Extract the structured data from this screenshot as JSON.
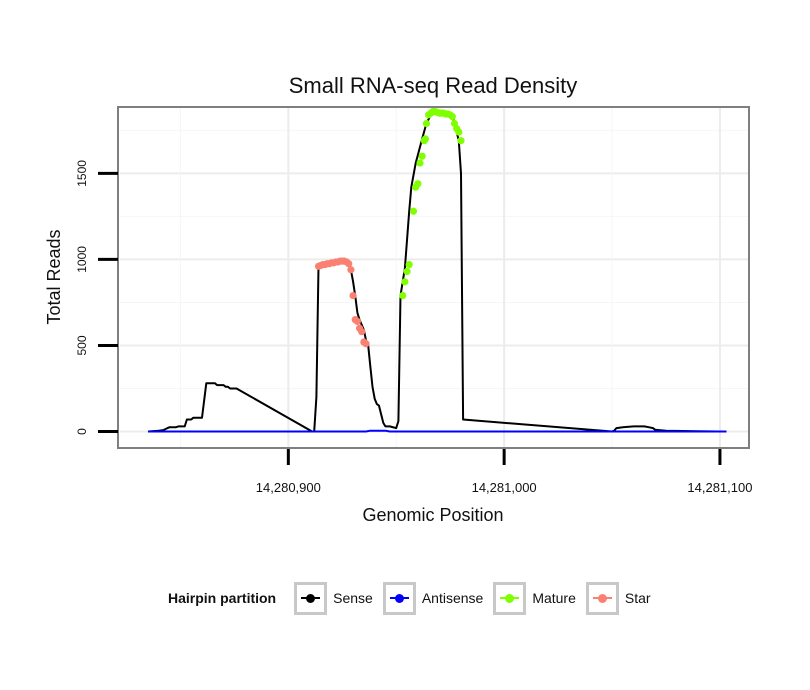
{
  "chart_data": {
    "type": "line",
    "title": "Small RNA-seq Read Density",
    "xlabel": "Genomic Position",
    "ylabel": "Total Reads",
    "xlim": [
      14280822,
      14281113
    ],
    "ylim": [
      -90,
      1880
    ],
    "xticks": [
      14280900,
      14281000,
      14281100
    ],
    "xtick_labels": [
      "14,280,900",
      "14,281,000",
      "14,281,100"
    ],
    "yticks": [
      0,
      500,
      1000,
      1500
    ],
    "ytick_labels": [
      "0",
      "500",
      "1000",
      "1500"
    ],
    "grid": true,
    "legend": {
      "title": "Hairpin partition",
      "position": "bottom",
      "entries": [
        {
          "name": "Sense",
          "color": "#000000"
        },
        {
          "name": "Antisense",
          "color": "#0000ff"
        },
        {
          "name": "Mature",
          "color": "#7fff00"
        },
        {
          "name": "Star",
          "color": "#fa8072"
        }
      ]
    },
    "series": [
      {
        "name": "Sense",
        "color": "#000000",
        "style": "line",
        "x": [
          14280835,
          14280840,
          14280842,
          14280844,
          14280845,
          14280848,
          14280849,
          14280852,
          14280853,
          14280855,
          14280856,
          14280860,
          14280862,
          14280866,
          14280867,
          14280870,
          14280871,
          14280872,
          14280873,
          14280875,
          14280876,
          14280911,
          14280912,
          14280913,
          14280914,
          14280920,
          14280925,
          14280928,
          14280929,
          14280930,
          14280931,
          14280932,
          14280933,
          14280934,
          14280935,
          14280936,
          14280937,
          14280938,
          14280939,
          14280940,
          14280941,
          14280942,
          14280944,
          14280945,
          14280946,
          14280947,
          14280950,
          14280951,
          14280952,
          14280954,
          14280956,
          14280957,
          14280959,
          14280962,
          14280964,
          14280966,
          14280968,
          14280970,
          14280972,
          14280974,
          14280976,
          14280977,
          14280978,
          14280979,
          14280980,
          14280981,
          14281050,
          14281051,
          14281052,
          14281055,
          14281060,
          14281065,
          14281067,
          14281069,
          14281070,
          14281075,
          14281090,
          14281100,
          14281103
        ],
        "y": [
          0,
          5,
          8,
          20,
          25,
          25,
          30,
          30,
          70,
          70,
          80,
          80,
          280,
          280,
          270,
          270,
          260,
          260,
          250,
          250,
          250,
          0,
          0,
          200,
          960,
          980,
          990,
          985,
          940,
          870,
          790,
          690,
          650,
          620,
          590,
          530,
          500,
          380,
          260,
          190,
          160,
          150,
          50,
          30,
          30,
          30,
          20,
          60,
          790,
          950,
          1280,
          1420,
          1560,
          1700,
          1790,
          1840,
          1860,
          1855,
          1850,
          1845,
          1840,
          1790,
          1740,
          1690,
          1500,
          70,
          0,
          5,
          20,
          25,
          30,
          30,
          25,
          20,
          10,
          5,
          2,
          0,
          0
        ]
      },
      {
        "name": "Antisense",
        "color": "#0000ff",
        "style": "line",
        "x": [
          14280835,
          14280936,
          14280938,
          14280945,
          14280947,
          14281103
        ],
        "y": [
          0,
          0,
          5,
          5,
          0,
          0
        ]
      },
      {
        "name": "Mature",
        "color": "#7fff00",
        "style": "points",
        "x": [
          14280953,
          14280954,
          14280955,
          14280956,
          14280958,
          14280959,
          14280960,
          14280961,
          14280962,
          14280963,
          14280963.5,
          14280964,
          14280965,
          14280966,
          14280967,
          14280968,
          14280969,
          14280970,
          14280971,
          14280972,
          14280973,
          14280974,
          14280975,
          14280976,
          14280977,
          14280978,
          14280979,
          14280980
        ],
        "y": [
          790,
          870,
          930,
          970,
          1280,
          1420,
          1440,
          1560,
          1600,
          1690,
          1700,
          1790,
          1840,
          1850,
          1860,
          1860,
          1855,
          1850,
          1850,
          1850,
          1845,
          1845,
          1840,
          1830,
          1790,
          1760,
          1740,
          1690
        ]
      },
      {
        "name": "Star",
        "color": "#fa8072",
        "style": "points",
        "x": [
          14280914,
          14280915,
          14280916,
          14280917,
          14280918,
          14280919,
          14280920,
          14280921,
          14280922,
          14280923,
          14280924,
          14280925,
          14280926,
          14280927,
          14280928,
          14280929,
          14280930,
          14280931,
          14280932,
          14280933,
          14280934,
          14280935,
          14280936
        ],
        "y": [
          960,
          965,
          970,
          970,
          975,
          975,
          980,
          980,
          985,
          985,
          990,
          990,
          990,
          985,
          975,
          940,
          790,
          650,
          640,
          600,
          580,
          520,
          510
        ]
      }
    ]
  }
}
